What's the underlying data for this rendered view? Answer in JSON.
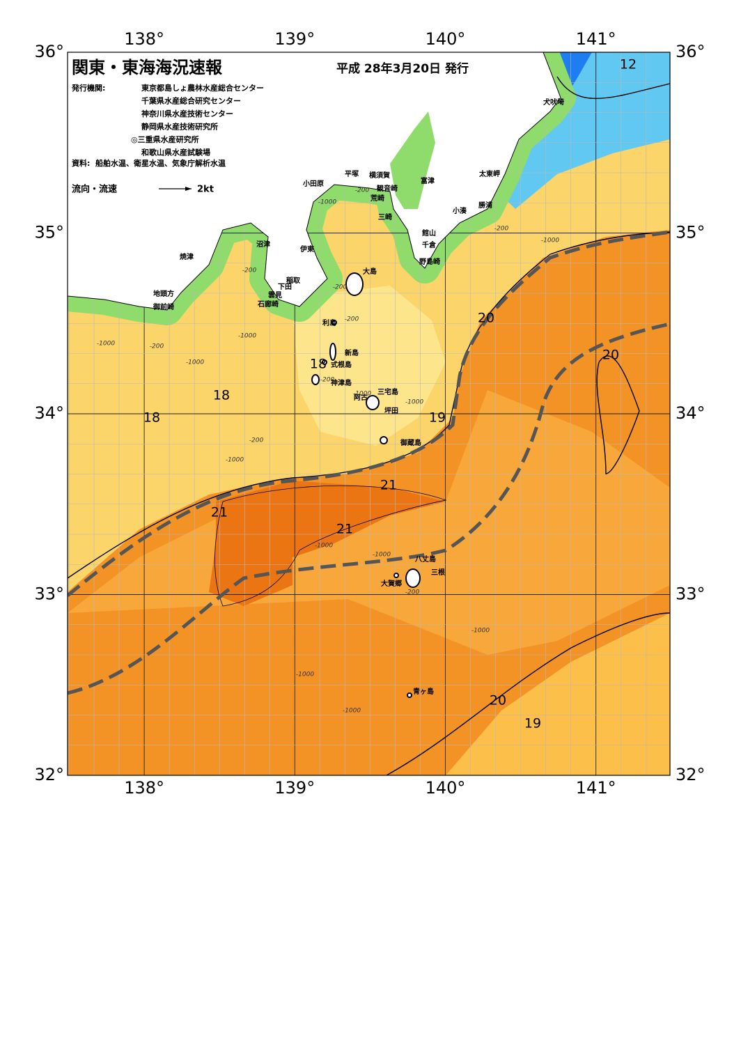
{
  "header": {
    "title": "関東・東海海況速報",
    "date": "平成 28年3月20日 発行"
  },
  "publisher": {
    "label": "発行機関:",
    "names": [
      "東京都島しょ農林水産総合センター",
      "千葉県水産総合研究センター",
      "神奈川県水産技術センター",
      "静岡県水産技術研究所",
      "◎三重県水産研究所",
      "和歌山県水産試験場"
    ]
  },
  "source": {
    "label": "資料:",
    "text": "船舶水温、衛星水温、気象庁解析水温"
  },
  "legend": {
    "label": "流向・流速",
    "scale": "2kt"
  },
  "axes": {
    "top": [
      "138°",
      "139°",
      "140°",
      "141°"
    ],
    "bottom": [
      "138°",
      "139°",
      "140°",
      "141°"
    ],
    "left": [
      "36°",
      "35°",
      "34°",
      "33°",
      "32°"
    ],
    "right": [
      "36°",
      "35°",
      "34°",
      "33°",
      "32°"
    ]
  },
  "places": [
    "犬吠埼",
    "太東岬",
    "勝浦",
    "小湊",
    "館山",
    "千倉",
    "野島崎",
    "富津",
    "横須賀",
    "観音崎",
    "荒崎",
    "三崎",
    "平塚",
    "小田原",
    "沼津",
    "伊東",
    "稲取",
    "下田",
    "雲見",
    "石廊崎",
    "焼津",
    "地頭方",
    "御前崎",
    "大島",
    "利島",
    "新島",
    "式根島",
    "神津島",
    "三宅島",
    "阿古",
    "坪田",
    "御蔵島",
    "八丈島",
    "三根",
    "大賀郷",
    "青ヶ島"
  ],
  "isotherm_labels": [
    "12",
    "20",
    "20",
    "18",
    "18",
    "18",
    "19",
    "21",
    "21",
    "21",
    "20",
    "19"
  ],
  "depth_labels": [
    "-200",
    "-1000",
    "-200",
    "-1000",
    "-200",
    "-200",
    "-200",
    "-1000",
    "-200",
    "-1000",
    "-1000",
    "-200",
    "-1000",
    "-1000",
    "-200",
    "-1000",
    "-1000",
    "-1000",
    "-200",
    "-1000",
    "-1000",
    "-1000"
  ]
}
